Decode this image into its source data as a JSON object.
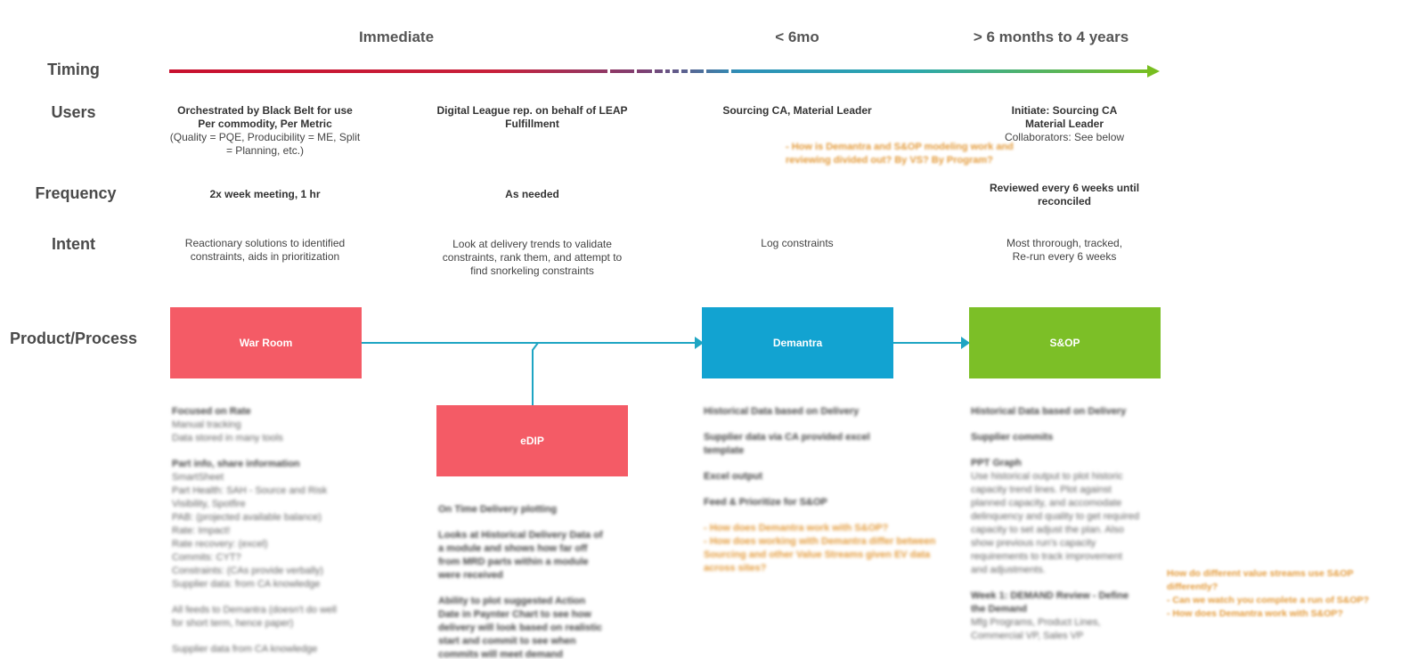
{
  "row_labels": {
    "timing": "Timing",
    "users": "Users",
    "frequency": "Frequency",
    "intent": "Intent",
    "product": "Product/Process"
  },
  "phases": {
    "immediate": "Immediate",
    "six_mo": "< 6mo",
    "long": "> 6 months to 4 years"
  },
  "colors": {
    "timeline_start": "#c8102e",
    "timeline_end": "#78be20",
    "connector": "#1ea5c3",
    "war_room": "#f45b66",
    "edip": "#f45b66",
    "demantra": "#12a3d1",
    "sop": "#7cbf27",
    "note": "#e39a3a"
  },
  "users": {
    "war_room_line1": "Orchestrated by Black Belt for use",
    "war_room_line2": "Per commodity, Per Metric",
    "war_room_line3": "(Quality = PQE, Producibility = ME, Split",
    "war_room_line4": "= Planning, etc.)",
    "edip_line1": "Digital League rep. on behalf of LEAP",
    "edip_line2": "Fulfillment",
    "demantra": "Sourcing CA, Material Leader",
    "sop_line1": "Initiate: Sourcing CA",
    "sop_line2": "Material Leader",
    "sop_line3": "Collaborators: See below"
  },
  "users_note_line1": "- How is Demantra and S&OP modeling work and",
  "users_note_line2": "reviewing divided out? By VS? By Program?",
  "frequency": {
    "war_room": "2x week meeting, 1 hr",
    "edip": "As needed",
    "sop_line1": "Reviewed every 6 weeks until",
    "sop_line2": "reconciled"
  },
  "intent": {
    "war_room_line1": "Reactionary solutions to identified",
    "war_room_line2": "constraints, aids in prioritization",
    "edip_line1": "Look at delivery trends to validate",
    "edip_line2": "constraints, rank them, and attempt to",
    "edip_line3": "find snorkeling constraints",
    "demantra": "Log constraints",
    "sop_line1": "Most throrough, tracked,",
    "sop_line2": "Re-run every 6 weeks"
  },
  "boxes": {
    "war_room": "War Room",
    "edip": "eDIP",
    "demantra": "Demantra",
    "sop": "S&OP"
  },
  "details_war_room": {
    "l1": "Focused on Rate",
    "l2": "Manual tracking",
    "l3": "Data stored in many tools",
    "l4": "Part info, share information",
    "l5": "SmartSheet",
    "l6": "Part Health: SAH - Source and Risk",
    "l7": "Visibility, Spotfire",
    "l8": "PAB: (projected available balance)",
    "l9": "Rate: Impact!",
    "l10": "Rate recovery: (excel)",
    "l11": "Commits: CYT?",
    "l12": "Constraints: (CAs provide verbally)",
    "l13": "Supplier data: from CA knowledge",
    "l14": "All feeds to Demantra (doesn't do well",
    "l15": "for short term, hence paper)",
    "l16": "Supplier data from CA knowledge"
  },
  "details_edip": {
    "l1": "On Time Delivery plotting",
    "l2": "Looks at Historical Delivery Data of",
    "l3": "a module and shows how far off",
    "l4": "from MRD parts within a module",
    "l5": "were received",
    "l6": "Ability to plot suggested Action",
    "l7": "Date in Paynter Chart to see how",
    "l8": "delivery will look based on realistic",
    "l9": "start and commit to see when",
    "l10": "commits will meet demand"
  },
  "details_demantra": {
    "l1": "Historical Data based on Delivery",
    "l2": "Supplier data via CA provided excel",
    "l3": "template",
    "l4": "Excel output",
    "l5": "Feed & Prioritize for S&OP",
    "l6": "- How does Demantra work with S&OP?",
    "l7": "- How does working with Demantra differ between",
    "l8": "Sourcing and other Value Streams given EV data",
    "l9": "across sites?"
  },
  "details_sop": {
    "l1": "Historical Data based on Delivery",
    "l2": "Supplier commits",
    "l3": "PPT Graph",
    "l4": "Use historical output to plot historic",
    "l5": "capacity trend lines. Plot against",
    "l6": "planned capacity, and accomodate",
    "l7": "delinquency and quality to get required",
    "l8": "capacity to set adjust the plan. Also",
    "l9": "show previous run's capacity",
    "l10": "requirements to track improvement",
    "l11": "and adjustments.",
    "l12": "Week 1: DEMAND Review - Define",
    "l13": "the Demand",
    "l14": "Mfg Programs, Product Lines,",
    "l15": "Commercial VP, Sales VP"
  },
  "side_note": {
    "l1": "How do different value streams use S&OP",
    "l2": "differently?",
    "l3": "- Can we watch you complete a run of S&OP?",
    "l4": "- How does Demantra work with S&OP?"
  }
}
